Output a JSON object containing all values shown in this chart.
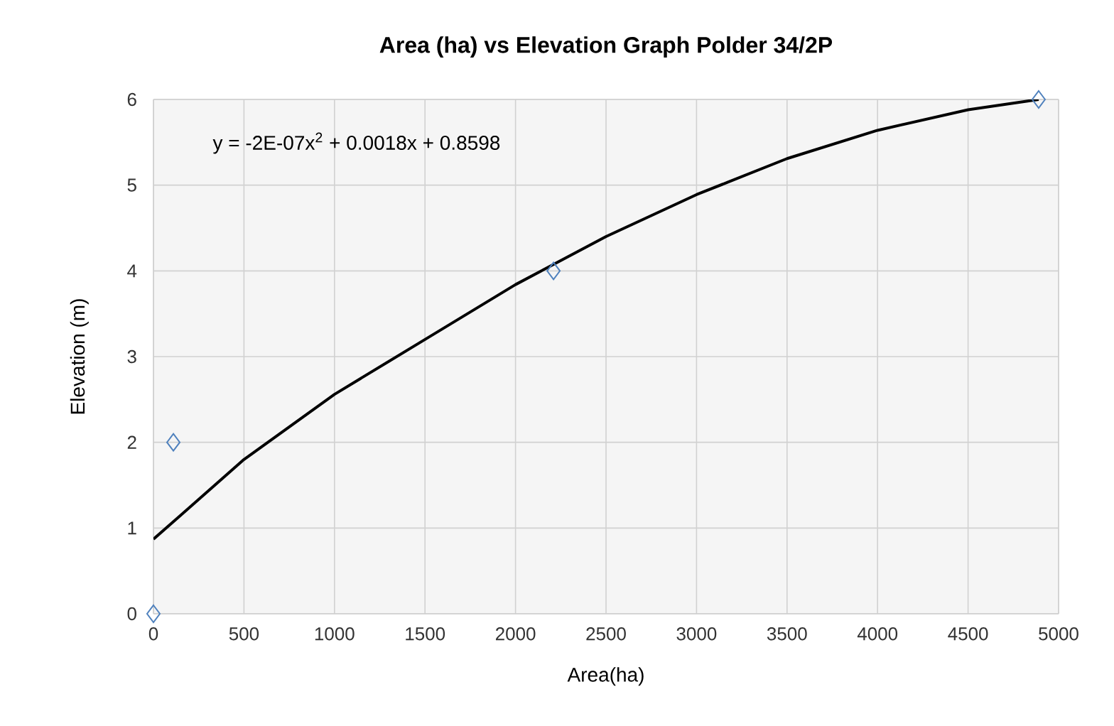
{
  "chart_data": {
    "type": "scatter",
    "title": "Area (ha) vs Elevation Graph Polder 34/2P",
    "xlabel": "Area(ha)",
    "ylabel": "Elevation (m)",
    "xlim": [
      0,
      5000
    ],
    "xticks": [
      0,
      500,
      1000,
      1500,
      2000,
      2500,
      3000,
      3500,
      4000,
      4500,
      5000
    ],
    "ylim": [
      0,
      6
    ],
    "yticks": [
      0,
      1,
      2,
      3,
      4,
      5,
      6
    ],
    "grid": true,
    "annotations": [
      "y = -2E-07x$^{2}$ + 0.0018x + 0.8598"
    ],
    "series": [
      {
        "color": "#4f81bd",
        "marker": "diamond",
        "x": [
          0,
          110,
          2210,
          4890
        ],
        "values": [
          0,
          2,
          4,
          6
        ]
      },
      {
        "type": "line",
        "color": "#000000",
        "marker": "none",
        "line_style": "solid",
        "x": [
          0,
          500,
          1000,
          1500,
          2000,
          2500,
          3000,
          3500,
          4000,
          4500,
          4890
        ],
        "values": [
          0.87,
          1.8,
          2.56,
          3.2,
          3.84,
          4.4,
          4.89,
          5.31,
          5.64,
          5.88,
          6.0
        ]
      }
    ]
  }
}
